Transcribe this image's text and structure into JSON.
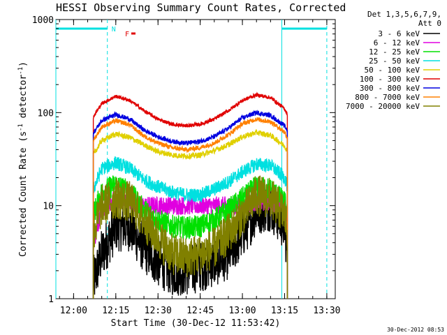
{
  "chart_data": {
    "type": "line",
    "title": "HESSI Observing Summary Count Rates, Corrected",
    "xlabel": "Start Time (30-Dec-12 11:53:42)",
    "ylabel": "Corrected Count Rate (s^-1 detector^-1)",
    "ylabel_parts": {
      "main": "Corrected Count Rate (s",
      "sup1": "-1",
      "mid": " detector",
      "sup2": "-1",
      "end": ")"
    },
    "yscale": "log",
    "xlim": [
      "11:53:42",
      "13:33:00"
    ],
    "ylim": [
      1,
      1000
    ],
    "x_ticks": [
      "12:00",
      "12:15",
      "12:30",
      "12:45",
      "13:00",
      "13:15",
      "13:30"
    ],
    "y_ticks": [
      "1",
      "10",
      "100",
      "1000"
    ],
    "footer_timestamp": "30-Dec-2012 08:53",
    "legend": {
      "header_line1": "Det 1,3,5,6,7,9,",
      "header_line2": "Att 0",
      "placement": "right"
    },
    "flags": [
      {
        "label": "N",
        "color": "#00e0e0",
        "intervals": [
          [
            "11:53:42",
            "12:12:00"
          ],
          [
            "13:14:00",
            "13:30:00"
          ]
        ]
      },
      {
        "label": "F",
        "color": "#e00000",
        "intervals": [
          [
            "12:20:30",
            "12:22:00"
          ]
        ]
      }
    ],
    "markers": {
      "cyan_solid": [
        "11:53:42",
        "13:14:00"
      ],
      "cyan_dashed": [
        "12:12:00",
        "13:30:00"
      ]
    },
    "x": [
      "12:07",
      "12:10",
      "12:15",
      "12:20",
      "12:25",
      "12:30",
      "12:35",
      "12:40",
      "12:45",
      "12:50",
      "12:55",
      "13:00",
      "13:05",
      "13:10",
      "13:15",
      "13:16"
    ],
    "series": [
      {
        "name": "3 - 6 keV",
        "color": "#000000",
        "values": [
          1.5,
          3,
          6,
          6,
          3.5,
          2.5,
          2,
          2,
          2.2,
          2.5,
          3,
          5,
          9,
          10,
          6,
          3
        ]
      },
      {
        "name": "6 - 12 keV",
        "color": "#e000e0",
        "values": [
          4,
          9,
          12,
          11,
          10,
          10,
          10,
          10,
          10,
          10,
          10,
          10,
          11,
          11,
          10,
          8
        ]
      },
      {
        "name": "12 - 25 keV",
        "color": "#00e000",
        "values": [
          8,
          14,
          17,
          14,
          9,
          7,
          6,
          5.8,
          6,
          7,
          9,
          12,
          16,
          15,
          11,
          8
        ]
      },
      {
        "name": "25 - 50 keV",
        "color": "#00e0e0",
        "values": [
          15,
          25,
          29,
          25,
          19,
          16,
          14,
          13,
          13,
          15,
          18,
          23,
          28,
          27,
          20,
          16
        ]
      },
      {
        "name": "50 - 100 keV",
        "color": "#e0d000",
        "values": [
          35,
          50,
          59,
          54,
          45,
          38,
          35,
          34,
          35,
          39,
          45,
          55,
          61,
          57,
          44,
          38
        ]
      },
      {
        "name": "100 - 300 keV",
        "color": "#e00000",
        "values": [
          90,
          125,
          150,
          135,
          105,
          85,
          75,
          72,
          75,
          85,
          105,
          135,
          155,
          145,
          110,
          95
        ]
      },
      {
        "name": "300 - 800 keV",
        "color": "#0000e0",
        "values": [
          60,
          82,
          95,
          85,
          65,
          55,
          49,
          47,
          49,
          55,
          68,
          88,
          100,
          93,
          72,
          64
        ]
      },
      {
        "name": "800 - 7000 keV",
        "color": "#ff8000",
        "values": [
          50,
          70,
          82,
          74,
          56,
          47,
          42,
          40,
          42,
          47,
          58,
          76,
          85,
          80,
          62,
          54
        ]
      },
      {
        "name": "7000 - 20000 keV",
        "color": "#808000",
        "values": [
          5,
          10,
          12,
          11,
          7,
          4.5,
          3,
          2.8,
          3,
          3.5,
          5,
          8,
          13,
          12,
          8,
          5
        ]
      }
    ]
  }
}
